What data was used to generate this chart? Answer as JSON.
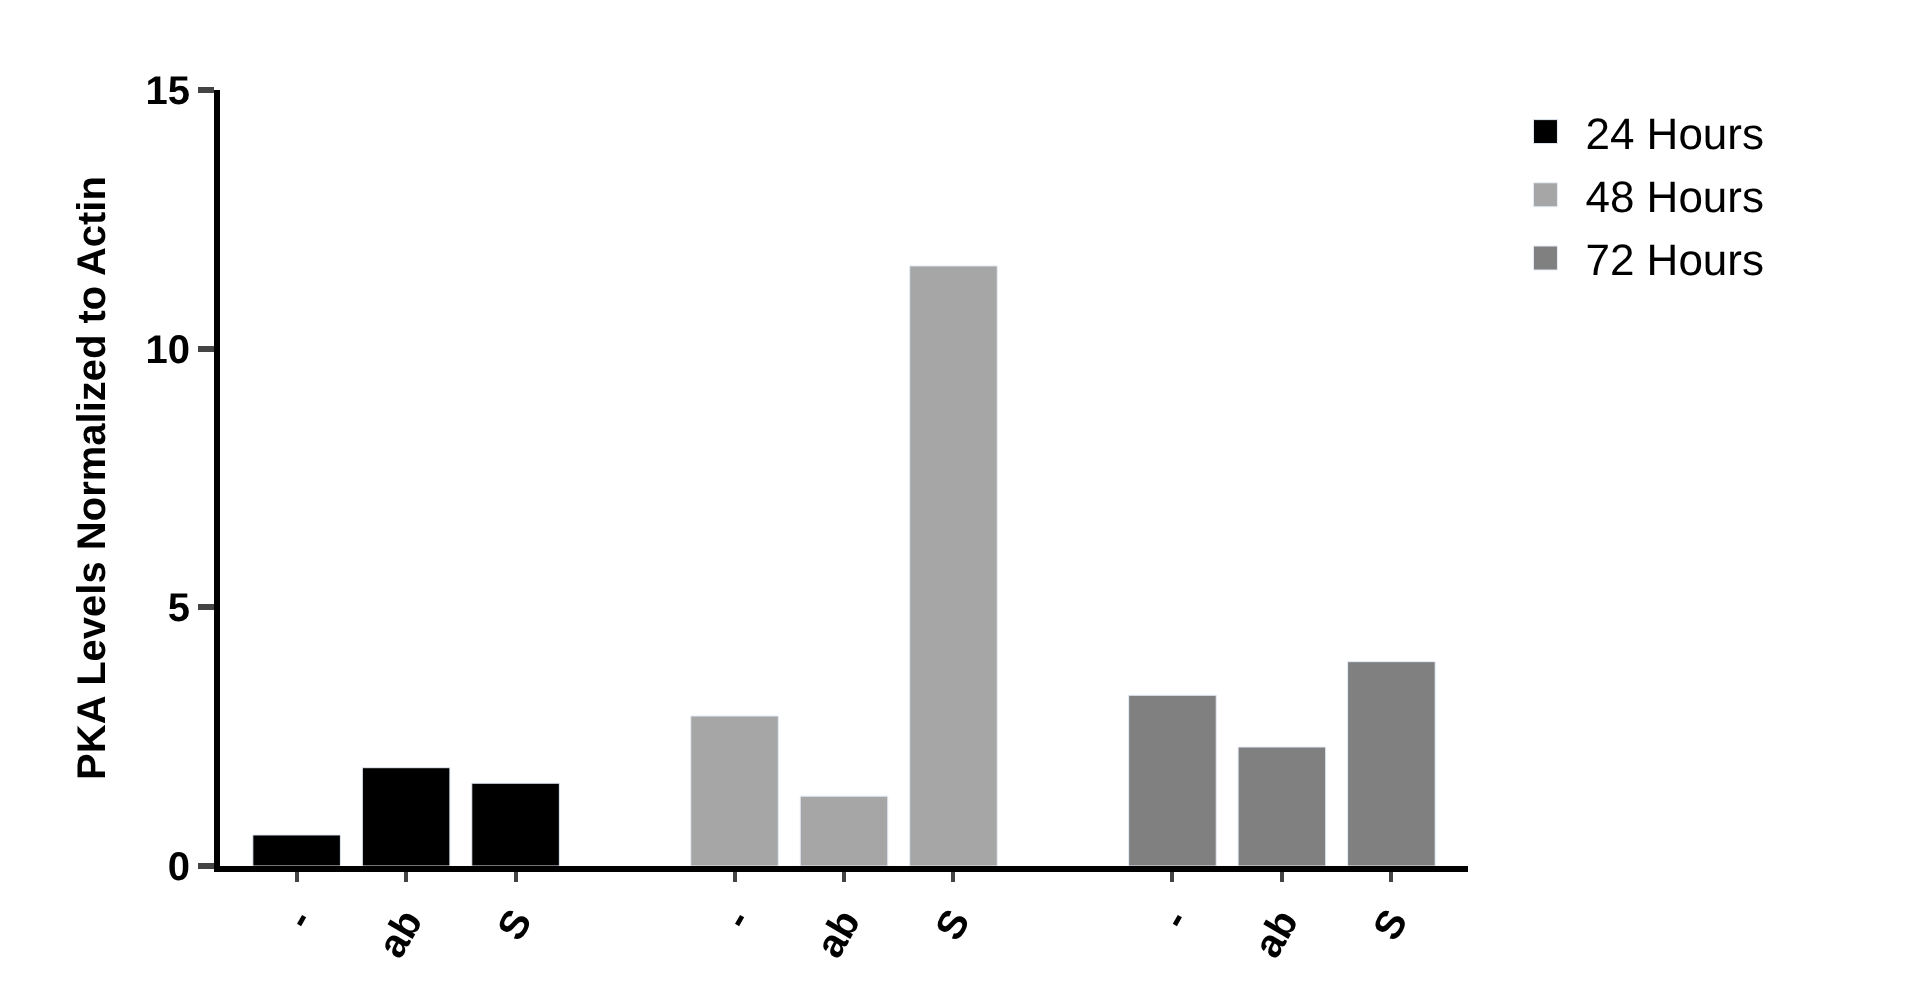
{
  "chart_data": {
    "type": "bar",
    "ylabel": "PKA Levels Normalized to Actin",
    "categories": [
      "-",
      "ab",
      "S",
      null,
      "-",
      "ab",
      "S",
      null,
      "-",
      "ab",
      "S"
    ],
    "series": [
      {
        "name": "24 Hours",
        "color": "#000000",
        "values": [
          0.6,
          1.9,
          1.6,
          null,
          null,
          null,
          null,
          null,
          null,
          null,
          null
        ]
      },
      {
        "name": "48 Hours",
        "color": "#a6a6a6",
        "values": [
          null,
          null,
          null,
          null,
          2.9,
          1.35,
          11.6,
          null,
          null,
          null,
          null
        ]
      },
      {
        "name": "72 Hours",
        "color": "#808080",
        "values": [
          null,
          null,
          null,
          null,
          null,
          null,
          null,
          null,
          3.3,
          2.3,
          3.95
        ]
      }
    ],
    "ylim": [
      0,
      15
    ],
    "yticks": [
      0,
      5,
      10,
      15
    ],
    "legend": "top right"
  }
}
